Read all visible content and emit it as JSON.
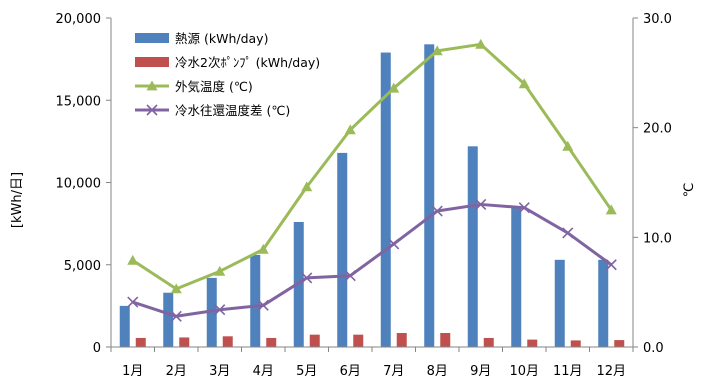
{
  "chart_data": {
    "type": "bar",
    "categories": [
      "1月",
      "2月",
      "3月",
      "4月",
      "5月",
      "6月",
      "7月",
      "8月",
      "9月",
      "10月",
      "11月",
      "12月"
    ],
    "bar_series": [
      {
        "name": "熱源 (kWh/day)",
        "color": "#4F81BD",
        "values": [
          2500,
          3300,
          4200,
          5600,
          7600,
          11800,
          17900,
          18400,
          12200,
          8500,
          5300,
          5300
        ]
      },
      {
        "name": "冷水2次ﾎﾟﾝﾌﾟ (kWh/day)",
        "color": "#C0504D",
        "values": [
          550,
          580,
          650,
          550,
          750,
          750,
          850,
          850,
          550,
          450,
          400,
          420
        ]
      }
    ],
    "line_series": [
      {
        "name": "外気温度 (℃)",
        "color": "#9BBB59",
        "marker": "triangle",
        "values": [
          7.9,
          5.3,
          6.9,
          8.9,
          14.6,
          19.8,
          23.6,
          27.0,
          27.6,
          24.0,
          18.3,
          12.5
        ]
      },
      {
        "name": "冷水往還温度差 (℃)",
        "color": "#8064A2",
        "marker": "x",
        "values": [
          4.1,
          2.8,
          3.4,
          3.8,
          6.3,
          6.5,
          9.4,
          12.4,
          13.0,
          12.7,
          10.4,
          7.5
        ]
      }
    ],
    "y_left": {
      "label": "[kWh/日]",
      "min": 0,
      "max": 20000,
      "ticks": [
        "0",
        "5,000",
        "10,000",
        "15,000",
        "20,000"
      ]
    },
    "y_right": {
      "label": "℃",
      "min": 0,
      "max": 30,
      "ticks": [
        "0.0",
        "10.0",
        "20.0",
        "30.0"
      ]
    },
    "legend_position": "top-left",
    "grid": false
  }
}
